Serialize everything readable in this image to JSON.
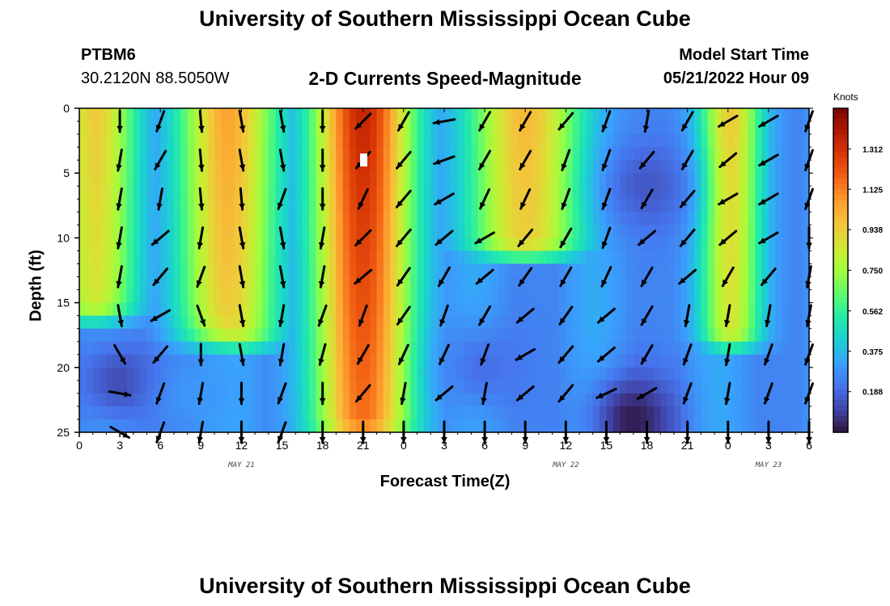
{
  "header": {
    "title_top": "University of Southern Mississippi Ocean Cube",
    "title_bottom": "University of Southern Mississippi Ocean Cube",
    "station_id": "PTBM6",
    "station_coords": "30.2120N  88.5050W",
    "subtitle": "2-D Currents Speed-Magnitude",
    "model_start_label": "Model Start Time",
    "model_start_value": "05/21/2022 Hour 09"
  },
  "chart_data": {
    "type": "heatmap",
    "title": "2-D Currents Speed-Magnitude",
    "xlabel": "Forecast Time(Z)",
    "ylabel": "Depth (ft)",
    "x_tick_labels": [
      "0",
      "3",
      "6",
      "9",
      "12",
      "15",
      "18",
      "21",
      "0",
      "3",
      "6",
      "9",
      "12",
      "15",
      "18",
      "21",
      "0",
      "3",
      "6"
    ],
    "x_ticks_hours": [
      0,
      3,
      6,
      9,
      12,
      15,
      18,
      21,
      24,
      27,
      30,
      33,
      36,
      39,
      42,
      45,
      48,
      51,
      54
    ],
    "xlim_hours": [
      0,
      54
    ],
    "y_ticks": [
      0,
      5,
      10,
      15,
      20,
      25
    ],
    "ylim": [
      0,
      25
    ],
    "y_inverted": true,
    "date_labels": [
      {
        "text": "MAY 21",
        "hour": 12
      },
      {
        "text": "MAY 22",
        "hour": 36
      },
      {
        "text": "MAY 23",
        "hour": 51
      }
    ],
    "colorbar": {
      "units": "Knots",
      "tick_labels": [
        "1.312",
        "1.125",
        "0.938",
        "0.750",
        "0.562",
        "0.375",
        "0.188"
      ],
      "tick_values": [
        1.312,
        1.125,
        0.938,
        0.75,
        0.562,
        0.375,
        0.188
      ],
      "range": [
        0,
        1.5
      ],
      "colors": [
        "#30123b",
        "#4145ab",
        "#4675ed",
        "#39a2fc",
        "#1bcfd4",
        "#24eca6",
        "#61fc6c",
        "#a4fc3b",
        "#d1e834",
        "#f3c63a",
        "#fe9b2d",
        "#f36315",
        "#d93806",
        "#b11901",
        "#7a0402"
      ]
    },
    "hot_columns": [
      {
        "center_hour": 1.2,
        "width": 2.2,
        "peak": 0.95,
        "depth_end": 15,
        "depth_sigma": 6
      },
      {
        "center_hour": 11.0,
        "width": 2.6,
        "peak": 1.05,
        "depth_end": 17,
        "depth_sigma": 5
      },
      {
        "center_hour": 21.0,
        "width": 2.6,
        "peak": 1.35,
        "depth_end": 24,
        "depth_sigma": 5
      },
      {
        "center_hour": 33.0,
        "width": 3.0,
        "peak": 1.0,
        "depth_end": 10,
        "depth_sigma": 6
      },
      {
        "center_hour": 48.2,
        "width": 1.6,
        "peak": 0.95,
        "depth_end": 17,
        "depth_sigma": 6
      }
    ],
    "low_spots": [
      {
        "hour": 3,
        "depth": 21,
        "value": 0.12
      },
      {
        "hour": 9,
        "depth": 22,
        "value": 0.3
      },
      {
        "hour": 30,
        "depth": 20,
        "value": 0.2
      },
      {
        "hour": 41,
        "depth": 24,
        "value": 0.02
      },
      {
        "hour": 42,
        "depth": 6,
        "value": 0.15
      }
    ],
    "arrow_rows_ft": [
      1,
      4,
      7,
      10,
      13,
      16,
      19,
      22,
      25
    ],
    "arrow_cols_hours": [
      3,
      6,
      9,
      12,
      15,
      18,
      21,
      24,
      27,
      30,
      33,
      36,
      39,
      42,
      45,
      48,
      51,
      54
    ],
    "arrow_directions_deg": [
      [
        180,
        200,
        175,
        170,
        170,
        180,
        225,
        210,
        260,
        210,
        210,
        220,
        200,
        190,
        210,
        240,
        240,
        200
      ],
      [
        190,
        210,
        175,
        170,
        170,
        180,
        220,
        220,
        250,
        210,
        210,
        200,
        200,
        220,
        210,
        230,
        240,
        200
      ],
      [
        190,
        190,
        175,
        175,
        200,
        180,
        205,
        220,
        240,
        205,
        205,
        200,
        200,
        210,
        220,
        240,
        240,
        200
      ],
      [
        190,
        230,
        190,
        170,
        170,
        190,
        225,
        220,
        230,
        240,
        220,
        210,
        200,
        230,
        220,
        230,
        240,
        180
      ],
      [
        190,
        220,
        200,
        170,
        170,
        190,
        230,
        215,
        210,
        230,
        215,
        210,
        205,
        210,
        230,
        210,
        220,
        190
      ],
      [
        170,
        240,
        160,
        170,
        190,
        200,
        200,
        215,
        200,
        210,
        230,
        215,
        230,
        210,
        190,
        190,
        190,
        190
      ],
      [
        150,
        220,
        180,
        170,
        190,
        195,
        210,
        205,
        205,
        200,
        240,
        220,
        230,
        210,
        200,
        190,
        200,
        200
      ],
      [
        100,
        200,
        190,
        180,
        200,
        180,
        220,
        190,
        230,
        190,
        230,
        220,
        245,
        240,
        200,
        190,
        200,
        200
      ],
      [
        120,
        200,
        190,
        180,
        200,
        180,
        180,
        180,
        180,
        180,
        180,
        180,
        180,
        180,
        180,
        180,
        180,
        180
      ]
    ]
  }
}
